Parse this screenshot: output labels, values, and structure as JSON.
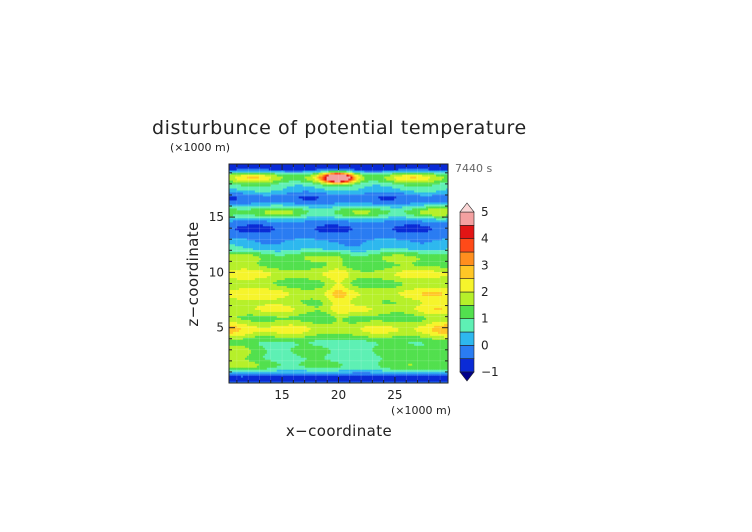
{
  "chart_data": {
    "type": "heatmap",
    "title": "disturbunce of potential temperature",
    "time_label": "7440 s",
    "xlabel": "x−coordinate",
    "ylabel": "z−coordinate",
    "x_unit": "(×1000 m)",
    "z_unit": "(×1000 m)",
    "xlim": [
      10.3,
      29.7
    ],
    "ylim": [
      0,
      19.8
    ],
    "x_ticks": [
      "15",
      "20",
      "25"
    ],
    "y_ticks": [
      "5",
      "10",
      "15"
    ],
    "colorbar": {
      "levels": [
        -1,
        -0.5,
        0,
        0.5,
        1,
        1.5,
        2,
        2.5,
        3,
        3.5,
        4,
        4.5,
        5
      ],
      "labels": [
        "−1",
        "0",
        "1",
        "2",
        "3",
        "4",
        "5"
      ],
      "colors": [
        "#00008b",
        "#0a2bd6",
        "#2a7cf2",
        "#2eb8ee",
        "#5ef0b4",
        "#52e04e",
        "#b6f02a",
        "#f6f42c",
        "#ffc726",
        "#ff8e1e",
        "#ff4a18",
        "#e21515",
        "#f4a0a0"
      ],
      "extend": "both"
    },
    "grid": true,
    "bands": [
      {
        "z": 0.5,
        "w": 0.55,
        "v": -0.6,
        "edge": 0.0,
        "modx": 0.0
      },
      {
        "z": 1.6,
        "w": 0.7,
        "v": 1.1,
        "edge": 0.6,
        "modx": 0.2
      },
      {
        "z": 2.9,
        "w": 0.8,
        "v": 1.0,
        "edge": 0.6,
        "modx": 0.3
      },
      {
        "z": 4.9,
        "w": 1.1,
        "v": 2.0,
        "edge": 0.8,
        "modx": 0.3
      },
      {
        "z": 6.7,
        "w": 0.7,
        "v": 1.7,
        "edge": 0.3,
        "modx": 0.3
      },
      {
        "z": 8.1,
        "w": 0.9,
        "v": 2.0,
        "edge": 0.6,
        "modx": 0.2
      },
      {
        "z": 9.9,
        "w": 0.9,
        "v": 1.9,
        "edge": 0.5,
        "modx": 0.2
      },
      {
        "z": 11.4,
        "w": 0.7,
        "v": 1.4,
        "edge": 0.3,
        "modx": 0.3
      },
      {
        "z": 12.6,
        "w": 0.5,
        "v": 0.2,
        "edge": 0.2,
        "modx": 0.2
      },
      {
        "z": 14.0,
        "w": 0.6,
        "v": -0.3,
        "edge": 0.0,
        "modx": 0.2
      },
      {
        "z": 15.5,
        "w": 0.6,
        "v": 1.4,
        "edge": 0.4,
        "modx": 0.4
      },
      {
        "z": 16.8,
        "w": 0.6,
        "v": -0.2,
        "edge": 0.0,
        "modx": 0.2
      },
      {
        "z": 17.6,
        "w": 0.5,
        "v": 0.6,
        "edge": 0.2,
        "modx": 0.2
      },
      {
        "z": 18.6,
        "w": 0.6,
        "v": 2.0,
        "edge": 0.2,
        "modx": 0.6
      },
      {
        "z": 19.5,
        "w": 0.4,
        "v": -0.9,
        "edge": 0.0,
        "modx": 0.0
      }
    ],
    "hot_spot": {
      "x": 20.0,
      "z": 18.6,
      "v": 4.8
    }
  }
}
